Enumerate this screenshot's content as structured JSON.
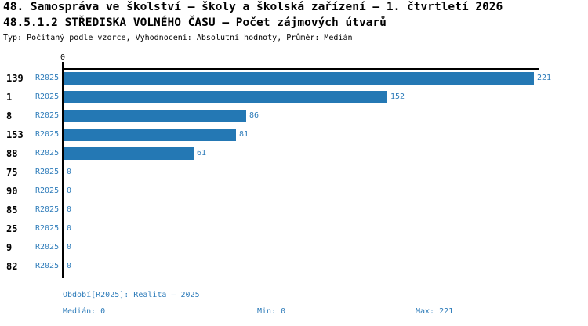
{
  "colors": {
    "accent_blue": "#2e7cba",
    "bar_blue": "#2478b4",
    "text_black": "#000000",
    "background": "#ffffff"
  },
  "header": {
    "title_line1": "48. Samospráva ve školství – školy a školská zařízení – 1. čtvrtletí 2026",
    "title_line2": "48.5.1.2 STŘEDISKA VOLNÉHO ČASU – Počet zájmových útvarů",
    "meta_line": "Typ: Počítaný podle vzorce, Vyhodnocení: Absolutní hodnoty, Průměr: Medián"
  },
  "chart_data": {
    "type": "bar",
    "orientation": "horizontal",
    "title": "48.5.1.2 STŘEDISKA VOLNÉHO ČASU – Počet zájmových útvarů",
    "x_axis": {
      "min": 0,
      "max": 221,
      "tick_labels": [
        "0"
      ]
    },
    "categories": [
      "139",
      "1",
      "8",
      "153",
      "88",
      "75",
      "90",
      "85",
      "25",
      "9",
      "82"
    ],
    "series": [
      {
        "name": "R2025",
        "values": [
          221,
          152,
          86,
          81,
          61,
          0,
          0,
          0,
          0,
          0,
          0
        ]
      }
    ],
    "value_labels_shown": true,
    "grid": false,
    "legend_position": "none"
  },
  "footer": {
    "period_info": "Období[R2025]: Realita – 2025",
    "median": "Medián: 0",
    "min": "Min: 0",
    "max": "Max: 221"
  }
}
